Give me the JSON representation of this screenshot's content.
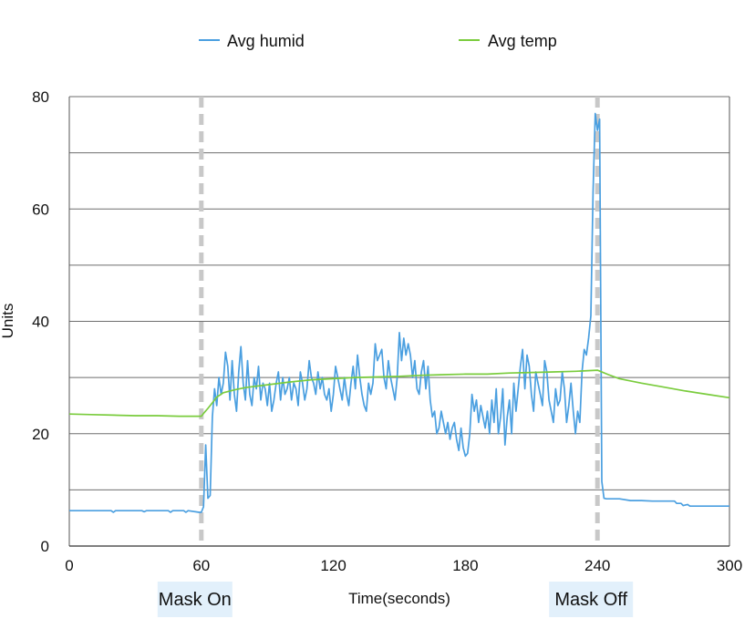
{
  "chart_data": {
    "type": "line",
    "title": "",
    "xlabel": "Time(seconds)",
    "ylabel": "Units",
    "xlim": [
      0,
      300
    ],
    "ylim": [
      0,
      80
    ],
    "x_ticks": [
      0,
      60,
      120,
      180,
      240,
      300
    ],
    "y_ticks": [
      0,
      20,
      40,
      60,
      80
    ],
    "y_gridlines": [
      10,
      20,
      30,
      40,
      50,
      60,
      70,
      80
    ],
    "grid": true,
    "legend_position": "top",
    "series": [
      {
        "name": "Avg humid",
        "color": "#4a9fe0",
        "points": [
          [
            0,
            6.3
          ],
          [
            10,
            6.3
          ],
          [
            19,
            6.3
          ],
          [
            20,
            6.0
          ],
          [
            21,
            6.3
          ],
          [
            33,
            6.3
          ],
          [
            34,
            6.1
          ],
          [
            35,
            6.3
          ],
          [
            45,
            6.3
          ],
          [
            46,
            6.0
          ],
          [
            47,
            6.3
          ],
          [
            52,
            6.3
          ],
          [
            53,
            6.0
          ],
          [
            54,
            6.3
          ],
          [
            59,
            6.0
          ],
          [
            60,
            6.0
          ],
          [
            61,
            7
          ],
          [
            62,
            18
          ],
          [
            63,
            8.5
          ],
          [
            64,
            9
          ],
          [
            65,
            23
          ],
          [
            66,
            28
          ],
          [
            67,
            25
          ],
          [
            68,
            30
          ],
          [
            69,
            27
          ],
          [
            70,
            29
          ],
          [
            71,
            34.5
          ],
          [
            72,
            32
          ],
          [
            73,
            26
          ],
          [
            74,
            33
          ],
          [
            75,
            27
          ],
          [
            76,
            24
          ],
          [
            77,
            31
          ],
          [
            78,
            35.5
          ],
          [
            79,
            29
          ],
          [
            80,
            26
          ],
          [
            81,
            33
          ],
          [
            82,
            27
          ],
          [
            83,
            25
          ],
          [
            84,
            30
          ],
          [
            85,
            28
          ],
          [
            86,
            32
          ],
          [
            87,
            26
          ],
          [
            88,
            29
          ],
          [
            89,
            28
          ],
          [
            90,
            25
          ],
          [
            91,
            29
          ],
          [
            92,
            24
          ],
          [
            93,
            26
          ],
          [
            94,
            29
          ],
          [
            95,
            31
          ],
          [
            96,
            26
          ],
          [
            97,
            30
          ],
          [
            98,
            27
          ],
          [
            99,
            28
          ],
          [
            100,
            30
          ],
          [
            101,
            26
          ],
          [
            102,
            29
          ],
          [
            103,
            28
          ],
          [
            104,
            25
          ],
          [
            105,
            31
          ],
          [
            106,
            29
          ],
          [
            107,
            26
          ],
          [
            108,
            28
          ],
          [
            109,
            33
          ],
          [
            110,
            30
          ],
          [
            111,
            29
          ],
          [
            112,
            27
          ],
          [
            113,
            31
          ],
          [
            114,
            28
          ],
          [
            115,
            30
          ],
          [
            116,
            27
          ],
          [
            117,
            26
          ],
          [
            118,
            28
          ],
          [
            119,
            24
          ],
          [
            120,
            27
          ],
          [
            121,
            32
          ],
          [
            122,
            30
          ],
          [
            123,
            28
          ],
          [
            124,
            26
          ],
          [
            125,
            30
          ],
          [
            126,
            27
          ],
          [
            127,
            25
          ],
          [
            128,
            29
          ],
          [
            129,
            32
          ],
          [
            130,
            28
          ],
          [
            131,
            34
          ],
          [
            132,
            30
          ],
          [
            133,
            27
          ],
          [
            134,
            25
          ],
          [
            135,
            24
          ],
          [
            136,
            29
          ],
          [
            137,
            27
          ],
          [
            138,
            29
          ],
          [
            139,
            36
          ],
          [
            140,
            33
          ],
          [
            141,
            34
          ],
          [
            142,
            35
          ],
          [
            143,
            30
          ],
          [
            144,
            28
          ],
          [
            145,
            33
          ],
          [
            146,
            30
          ],
          [
            147,
            28
          ],
          [
            148,
            26
          ],
          [
            149,
            30
          ],
          [
            150,
            38
          ],
          [
            151,
            33
          ],
          [
            152,
            37
          ],
          [
            153,
            34
          ],
          [
            154,
            36
          ],
          [
            155,
            34
          ],
          [
            156,
            30
          ],
          [
            157,
            33
          ],
          [
            158,
            28
          ],
          [
            159,
            27
          ],
          [
            160,
            31
          ],
          [
            161,
            33
          ],
          [
            162,
            28
          ],
          [
            163,
            32
          ],
          [
            164,
            26
          ],
          [
            165,
            23
          ],
          [
            166,
            24
          ],
          [
            167,
            20
          ],
          [
            168,
            21
          ],
          [
            169,
            24
          ],
          [
            170,
            22
          ],
          [
            171,
            20
          ],
          [
            172,
            22
          ],
          [
            173,
            19
          ],
          [
            174,
            21
          ],
          [
            175,
            22
          ],
          [
            176,
            19
          ],
          [
            177,
            17
          ],
          [
            178,
            21
          ],
          [
            179,
            17.5
          ],
          [
            180,
            16
          ],
          [
            181,
            16.5
          ],
          [
            182,
            20
          ],
          [
            183,
            27
          ],
          [
            184,
            24
          ],
          [
            185,
            26
          ],
          [
            186,
            22
          ],
          [
            187,
            25
          ],
          [
            188,
            23
          ],
          [
            189,
            21
          ],
          [
            190,
            24
          ],
          [
            191,
            20
          ],
          [
            192,
            26
          ],
          [
            193,
            22
          ],
          [
            194,
            28
          ],
          [
            195,
            20
          ],
          [
            196,
            23
          ],
          [
            197,
            28
          ],
          [
            198,
            18
          ],
          [
            199,
            23
          ],
          [
            200,
            26
          ],
          [
            201,
            20
          ],
          [
            202,
            29
          ],
          [
            203,
            24
          ],
          [
            204,
            28
          ],
          [
            205,
            32
          ],
          [
            206,
            35
          ],
          [
            207,
            28
          ],
          [
            208,
            34
          ],
          [
            209,
            32
          ],
          [
            210,
            27
          ],
          [
            211,
            24
          ],
          [
            212,
            31
          ],
          [
            213,
            29
          ],
          [
            214,
            27
          ],
          [
            215,
            25
          ],
          [
            216,
            33
          ],
          [
            217,
            31
          ],
          [
            218,
            26
          ],
          [
            219,
            24
          ],
          [
            220,
            22
          ],
          [
            221,
            28
          ],
          [
            222,
            25
          ],
          [
            223,
            26
          ],
          [
            224,
            31
          ],
          [
            225,
            28
          ],
          [
            226,
            22
          ],
          [
            227,
            25
          ],
          [
            228,
            29
          ],
          [
            229,
            24
          ],
          [
            230,
            20
          ],
          [
            231,
            24
          ],
          [
            232,
            22
          ],
          [
            233,
            31
          ],
          [
            234,
            35
          ],
          [
            235,
            34
          ],
          [
            236,
            37
          ],
          [
            237,
            41
          ],
          [
            238,
            63
          ],
          [
            239,
            77
          ],
          [
            240,
            74
          ],
          [
            241,
            76
          ],
          [
            242,
            11.5
          ],
          [
            243,
            8.5
          ],
          [
            244,
            8.4
          ],
          [
            250,
            8.4
          ],
          [
            255,
            8.1
          ],
          [
            260,
            8.1
          ],
          [
            265,
            8.0
          ],
          [
            270,
            8.0
          ],
          [
            275,
            8.0
          ],
          [
            276,
            7.6
          ],
          [
            278,
            7.6
          ],
          [
            279,
            7.2
          ],
          [
            281,
            7.4
          ],
          [
            282,
            7.1
          ],
          [
            290,
            7.1
          ],
          [
            300,
            7.1
          ]
        ]
      },
      {
        "name": "Avg temp",
        "color": "#7acc3d",
        "points": [
          [
            0,
            23.5
          ],
          [
            10,
            23.4
          ],
          [
            20,
            23.3
          ],
          [
            30,
            23.2
          ],
          [
            40,
            23.2
          ],
          [
            50,
            23.1
          ],
          [
            60,
            23.1
          ],
          [
            61,
            23.6
          ],
          [
            63,
            24.5
          ],
          [
            65,
            25.5
          ],
          [
            67,
            26.5
          ],
          [
            70,
            27.3
          ],
          [
            75,
            27.8
          ],
          [
            80,
            28.2
          ],
          [
            90,
            28.7
          ],
          [
            100,
            29.2
          ],
          [
            110,
            29.6
          ],
          [
            120,
            29.8
          ],
          [
            130,
            30.0
          ],
          [
            140,
            30.1
          ],
          [
            150,
            30.2
          ],
          [
            160,
            30.4
          ],
          [
            170,
            30.5
          ],
          [
            180,
            30.6
          ],
          [
            190,
            30.6
          ],
          [
            200,
            30.8
          ],
          [
            210,
            30.9
          ],
          [
            220,
            31.0
          ],
          [
            230,
            31.1
          ],
          [
            240,
            31.3
          ],
          [
            245,
            30.5
          ],
          [
            250,
            29.8
          ],
          [
            260,
            29.0
          ],
          [
            270,
            28.3
          ],
          [
            280,
            27.6
          ],
          [
            290,
            27.0
          ],
          [
            300,
            26.4
          ]
        ]
      }
    ],
    "markers": [
      {
        "x": 60,
        "label": "Mask On",
        "style": "dashed",
        "color": "#c8c8c8"
      },
      {
        "x": 240,
        "label": "Mask Off",
        "style": "dashed",
        "color": "#c8c8c8"
      }
    ],
    "label_box_color": "#e2f0fb"
  }
}
